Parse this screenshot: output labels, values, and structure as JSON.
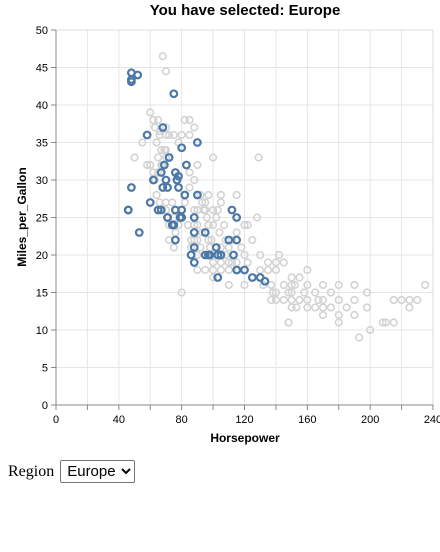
{
  "chart_data": {
    "type": "scatter",
    "title": "You have selected: Europe",
    "xlabel": "Horsepower",
    "ylabel": "Miles_per_Gallon",
    "xlim": [
      0,
      240
    ],
    "ylim": [
      0,
      50
    ],
    "x_ticks": [
      0,
      40,
      80,
      120,
      160,
      200,
      240
    ],
    "y_ticks": [
      0,
      5,
      10,
      15,
      20,
      25,
      30,
      35,
      40,
      45,
      50
    ],
    "grid": true,
    "colors": {
      "selected": "#4c78a8",
      "other": "#d3d3d3"
    },
    "series": [
      {
        "points": [
          [
            46,
            26
          ],
          [
            46,
            26
          ],
          [
            48,
            29
          ],
          [
            48,
            43.1
          ],
          [
            48,
            44.3
          ],
          [
            48,
            43.4
          ],
          [
            52,
            44
          ],
          [
            53,
            23
          ],
          [
            58,
            36
          ],
          [
            60,
            27
          ],
          [
            62,
            30
          ],
          [
            65,
            26
          ],
          [
            67,
            26
          ],
          [
            67,
            31
          ],
          [
            68,
            29
          ],
          [
            68,
            37
          ],
          [
            69,
            32
          ],
          [
            70,
            30
          ],
          [
            71,
            25
          ],
          [
            71,
            25
          ],
          [
            71,
            29
          ],
          [
            72,
            33
          ],
          [
            74,
            24
          ],
          [
            75,
            24
          ],
          [
            75,
            41.5
          ],
          [
            76,
            26
          ],
          [
            76,
            31
          ],
          [
            76,
            22
          ],
          [
            77,
            30
          ],
          [
            78,
            29
          ],
          [
            78,
            30.5
          ],
          [
            79,
            25
          ],
          [
            80,
            34.3
          ],
          [
            80,
            26
          ],
          [
            80,
            25
          ],
          [
            82,
            28
          ],
          [
            83,
            32
          ],
          [
            86,
            20
          ],
          [
            88,
            25
          ],
          [
            88,
            23
          ],
          [
            88,
            21
          ],
          [
            88,
            19
          ],
          [
            90,
            28
          ],
          [
            90,
            35
          ],
          [
            95,
            20
          ],
          [
            95,
            23
          ],
          [
            97,
            20
          ],
          [
            98,
            20
          ],
          [
            102,
            21
          ],
          [
            103,
            20
          ],
          [
            103,
            17
          ],
          [
            105,
            20
          ],
          [
            110,
            22
          ],
          [
            112,
            26
          ],
          [
            113,
            20
          ],
          [
            115,
            25
          ],
          [
            115,
            18
          ],
          [
            115,
            22
          ],
          [
            120,
            18
          ],
          [
            125,
            17
          ],
          [
            130,
            17
          ],
          [
            133,
            16.5
          ]
        ]
      },
      {
        "points": [
          [
            60,
            39
          ],
          [
            63,
            37
          ],
          [
            64,
            35
          ],
          [
            65,
            38
          ],
          [
            65,
            33
          ],
          [
            65,
            31
          ],
          [
            66,
            36
          ],
          [
            67,
            34
          ],
          [
            67,
            32
          ],
          [
            68,
            32
          ],
          [
            69,
            34
          ],
          [
            70,
            33
          ],
          [
            70,
            34
          ],
          [
            70,
            36
          ],
          [
            72,
            36
          ],
          [
            75,
            36
          ],
          [
            78,
            35
          ],
          [
            80,
            36
          ],
          [
            82,
            38
          ],
          [
            85,
            36
          ],
          [
            85,
            38
          ],
          [
            88,
            37
          ],
          [
            90,
            32
          ],
          [
            60,
            32
          ],
          [
            62,
            31
          ],
          [
            64,
            28
          ],
          [
            66,
            27
          ],
          [
            70,
            27
          ],
          [
            70,
            26
          ],
          [
            72,
            24
          ],
          [
            72,
            22
          ],
          [
            74,
            27
          ],
          [
            75,
            25
          ],
          [
            75,
            21
          ],
          [
            76,
            23
          ],
          [
            78,
            24
          ],
          [
            80,
            25
          ],
          [
            82,
            27
          ],
          [
            84,
            24
          ],
          [
            85,
            29
          ],
          [
            86,
            21
          ],
          [
            86,
            22
          ],
          [
            88,
            22
          ],
          [
            88,
            24
          ],
          [
            88,
            26
          ],
          [
            90,
            26
          ],
          [
            90,
            24
          ],
          [
            90,
            22
          ],
          [
            90,
            20
          ],
          [
            92,
            28
          ],
          [
            93,
            23
          ],
          [
            95,
            26
          ],
          [
            95,
            27
          ],
          [
            96,
            25
          ],
          [
            97,
            24
          ],
          [
            97,
            22
          ],
          [
            98,
            21
          ],
          [
            100,
            19
          ],
          [
            100,
            18
          ],
          [
            100,
            24
          ],
          [
            100,
            26
          ],
          [
            105,
            21
          ],
          [
            105,
            18
          ],
          [
            105,
            19
          ],
          [
            105,
            28
          ],
          [
            108,
            22
          ],
          [
            108,
            20
          ],
          [
            110,
            18
          ],
          [
            110,
            21
          ],
          [
            110,
            19
          ],
          [
            112,
            19
          ],
          [
            112,
            22
          ],
          [
            115,
            23
          ],
          [
            115,
            19
          ],
          [
            116,
            18
          ],
          [
            120,
            20
          ],
          [
            120,
            24
          ],
          [
            122,
            19
          ],
          [
            125,
            22
          ],
          [
            128,
            25
          ],
          [
            129,
            33
          ],
          [
            130,
            20
          ],
          [
            130,
            18
          ],
          [
            135,
            19
          ],
          [
            135,
            18
          ],
          [
            137,
            16
          ],
          [
            137,
            14
          ],
          [
            138,
            15
          ],
          [
            140,
            14
          ],
          [
            140,
            18
          ],
          [
            140,
            19
          ],
          [
            140,
            15
          ],
          [
            142,
            20
          ],
          [
            145,
            14
          ],
          [
            145,
            16
          ],
          [
            148,
            15
          ],
          [
            148,
            11
          ],
          [
            150,
            14
          ],
          [
            150,
            15
          ],
          [
            150,
            16
          ],
          [
            150,
            13
          ],
          [
            150,
            17
          ],
          [
            152,
            16
          ],
          [
            153,
            13
          ],
          [
            155,
            17
          ],
          [
            158,
            15
          ],
          [
            160,
            13
          ],
          [
            160,
            14
          ],
          [
            160,
            18
          ],
          [
            165,
            13
          ],
          [
            165,
            15
          ],
          [
            167,
            14
          ],
          [
            170,
            12
          ],
          [
            170,
            13
          ],
          [
            170,
            16
          ],
          [
            175,
            13
          ],
          [
            180,
            12
          ],
          [
            180,
            14
          ],
          [
            180,
            11
          ],
          [
            190,
            12
          ],
          [
            190,
            14
          ],
          [
            193,
            9
          ],
          [
            198,
            15
          ],
          [
            198,
            13
          ],
          [
            200,
            10
          ],
          [
            208,
            11
          ],
          [
            210,
            11
          ],
          [
            215,
            11
          ],
          [
            215,
            14
          ],
          [
            220,
            14
          ],
          [
            225,
            13
          ],
          [
            225,
            14
          ],
          [
            230,
            14
          ],
          [
            235,
            16
          ],
          [
            66,
            36.5
          ],
          [
            70,
            37
          ],
          [
            68,
            46.5
          ],
          [
            70,
            44.5
          ],
          [
            55,
            35
          ],
          [
            62,
            38
          ],
          [
            92,
            21
          ],
          [
            94,
            26
          ],
          [
            99,
            22
          ],
          [
            102,
            25
          ],
          [
            104,
            23
          ],
          [
            95,
            18
          ],
          [
            100,
            17
          ],
          [
            90,
            18
          ],
          [
            110,
            16
          ],
          [
            120,
            16
          ],
          [
            63,
            30
          ],
          [
            58,
            32
          ],
          [
            50,
            33
          ],
          [
            80,
            15
          ],
          [
            85,
            31
          ],
          [
            100,
            33
          ],
          [
            105,
            27
          ],
          [
            115,
            28
          ],
          [
            122,
            24
          ],
          [
            88,
            30
          ],
          [
            93,
            27
          ],
          [
            97,
            28
          ],
          [
            103,
            26
          ],
          [
            107,
            24
          ],
          [
            118,
            21
          ],
          [
            132,
            16
          ],
          [
            145,
            19
          ],
          [
            155,
            14
          ],
          [
            160,
            16
          ],
          [
            170,
            14
          ],
          [
            175,
            15
          ],
          [
            180,
            16
          ],
          [
            185,
            13
          ],
          [
            190,
            16
          ]
        ]
      }
    ]
  },
  "controls": {
    "region_label": "Region",
    "region_selected": "Europe"
  }
}
